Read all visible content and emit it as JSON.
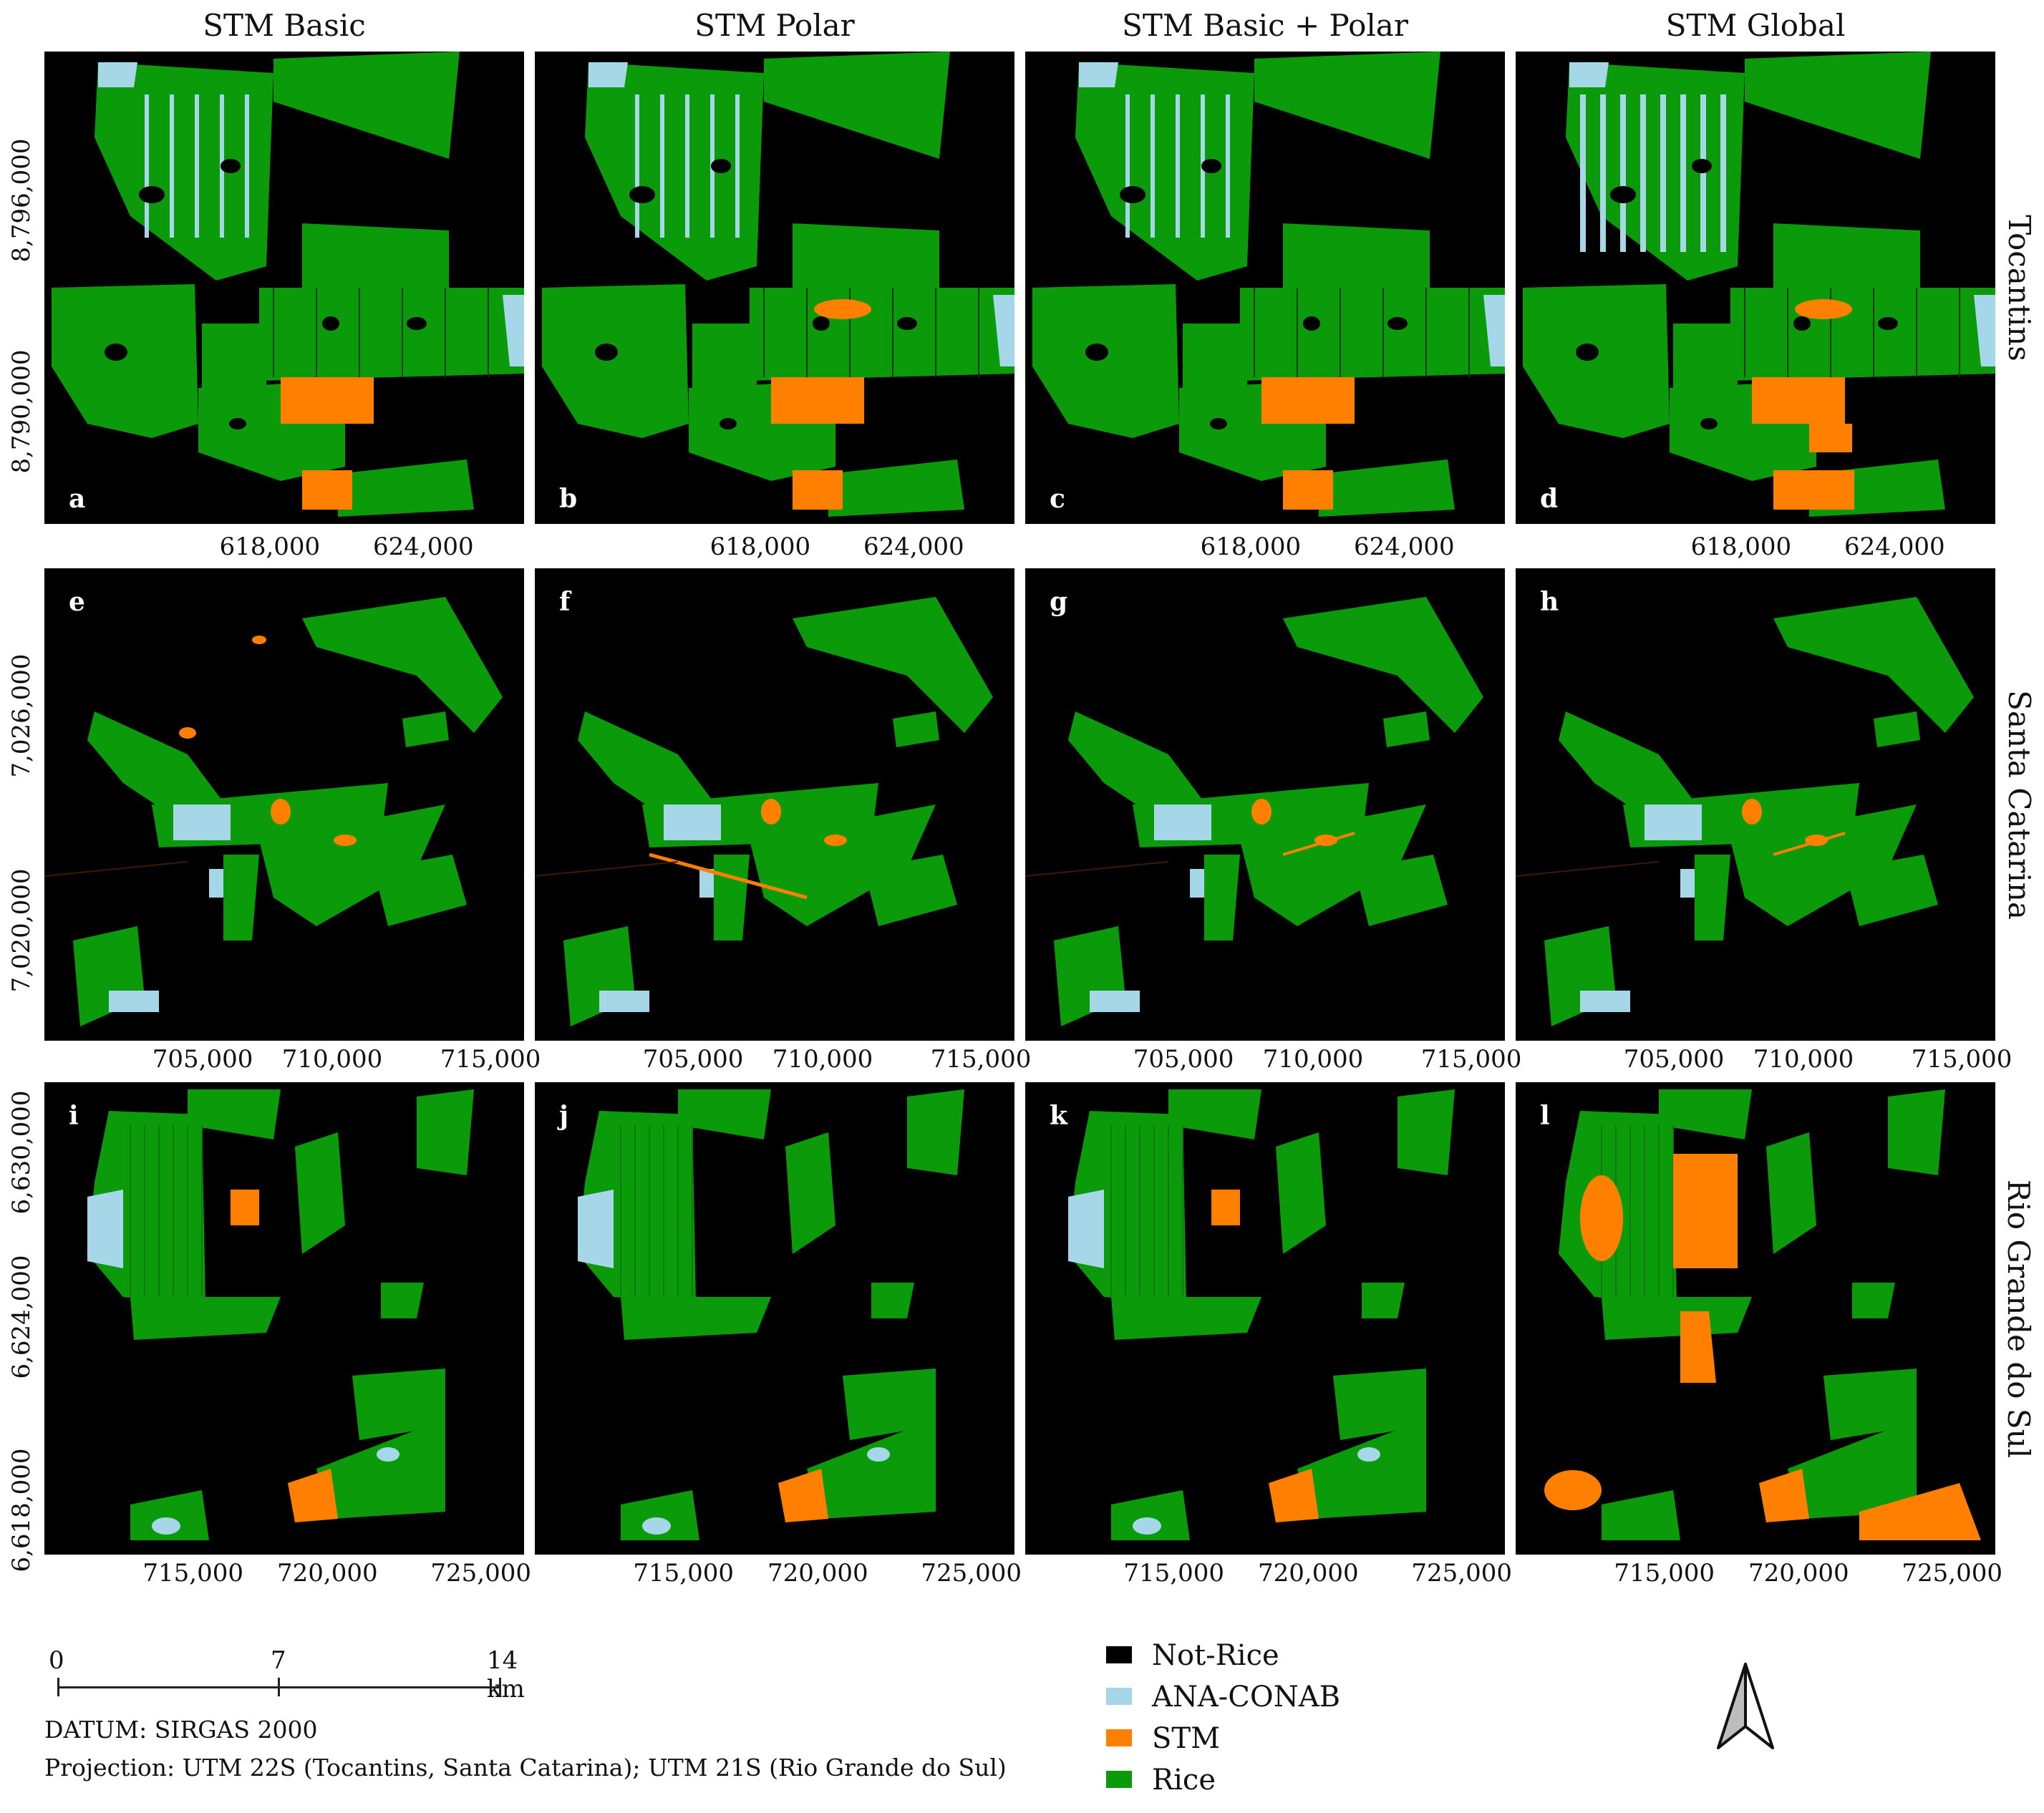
{
  "columns": [
    {
      "title": "STM Basic"
    },
    {
      "title": "STM Polar"
    },
    {
      "title": "STM Basic + Polar"
    },
    {
      "title": "STM Global"
    }
  ],
  "rows": [
    {
      "label": "Tocantins",
      "x_ticks": [
        "618,000",
        "624,000"
      ],
      "y_ticks": [
        "8,796,000",
        "8,790,000"
      ]
    },
    {
      "label": "Santa Catarina",
      "x_ticks": [
        "705,000",
        "710,000",
        "715,000"
      ],
      "y_ticks": [
        "7,026,000",
        "7,020,000"
      ]
    },
    {
      "label": "Rio Grande do Sul",
      "x_ticks": [
        "715,000",
        "720,000",
        "725,000"
      ],
      "y_ticks": [
        "6,630,000",
        "6,624,000",
        "6,618,000"
      ]
    }
  ],
  "panel_letters": [
    "a",
    "b",
    "c",
    "d",
    "e",
    "f",
    "g",
    "h",
    "i",
    "j",
    "k",
    "l"
  ],
  "legend": [
    {
      "label": "Not-Rice",
      "color": "#000000"
    },
    {
      "label": "ANA-CONAB",
      "color": "#a6d7e8"
    },
    {
      "label": "STM",
      "color": "#ff8000"
    },
    {
      "label": "Rice",
      "color": "#0a9a0a"
    }
  ],
  "scale_bar": {
    "ticks": [
      "0",
      "7",
      "14 km"
    ]
  },
  "datum": "DATUM: SIRGAS 2000",
  "projection": "Projection: UTM 22S (Tocantins, Santa Catarina); UTM 21S (Rio Grande do Sul)",
  "north_arrow_icon": "north-arrow-icon"
}
